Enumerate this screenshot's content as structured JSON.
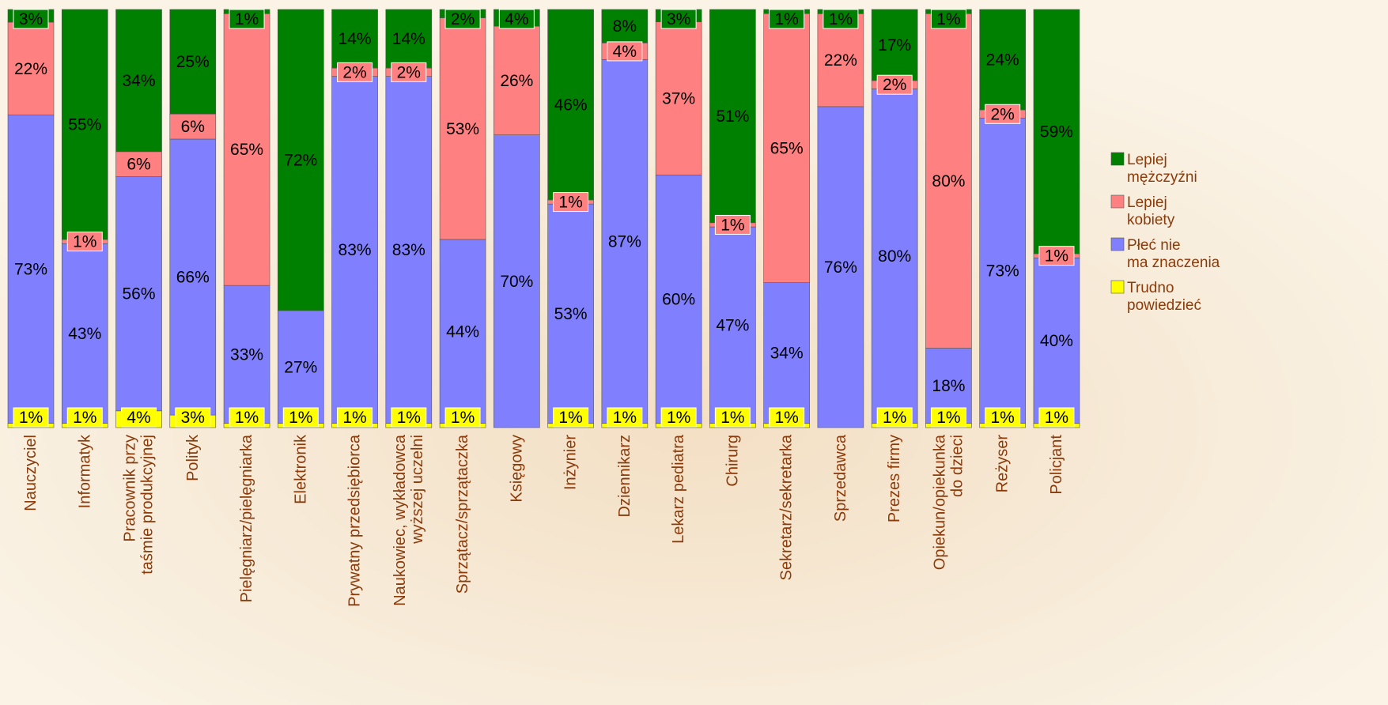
{
  "chart_data": {
    "type": "stacked_bar_percent",
    "categories": [
      "Nauczyciel",
      "Informatyk",
      "Pracownik przy\ntaśmie produkcyjnej",
      "Polityk",
      "Pielęgniarz/pielęgniarka",
      "Elektronik",
      "Prywatny przedsiębiorca",
      "Naukowiec, wykładowca\nwyższej uczelni",
      "Sprzątacz/sprzątaczka",
      "Księgowy",
      "Inżynier",
      "Dziennikarz",
      "Lekarz pediatra",
      "Chirurg",
      "Sekretarz/sekretarka",
      "Sprzedawca",
      "Prezes firmy",
      "Opiekun/opiekunka\ndo dzieci",
      "Reżyser",
      "Policjant"
    ],
    "series": [
      {
        "name": "Lepiej\nmężczyźni",
        "color": "#008000",
        "values": [
          3,
          55,
          34,
          25,
          1,
          72,
          14,
          14,
          2,
          4,
          46,
          8,
          3,
          51,
          1,
          1,
          17,
          1,
          24,
          59
        ]
      },
      {
        "name": "Lepiej\nkobiety",
        "color": "#ff8080",
        "values": [
          22,
          1,
          6,
          6,
          65,
          null,
          2,
          2,
          53,
          26,
          1,
          4,
          37,
          1,
          65,
          22,
          2,
          80,
          2,
          1
        ]
      },
      {
        "name": "Płeć nie\nma znaczenia",
        "color": "#8080ff",
        "values": [
          73,
          43,
          56,
          66,
          33,
          27,
          83,
          83,
          44,
          70,
          53,
          87,
          60,
          47,
          34,
          76,
          80,
          18,
          73,
          40
        ]
      },
      {
        "name": "Trudno\npowiedzieć",
        "color": "#ffff00",
        "values": [
          1,
          1,
          4,
          3,
          1,
          1,
          1,
          1,
          1,
          null,
          1,
          1,
          1,
          1,
          1,
          null,
          1,
          1,
          1,
          1
        ]
      }
    ],
    "value_suffix": "%",
    "legend": "right"
  }
}
